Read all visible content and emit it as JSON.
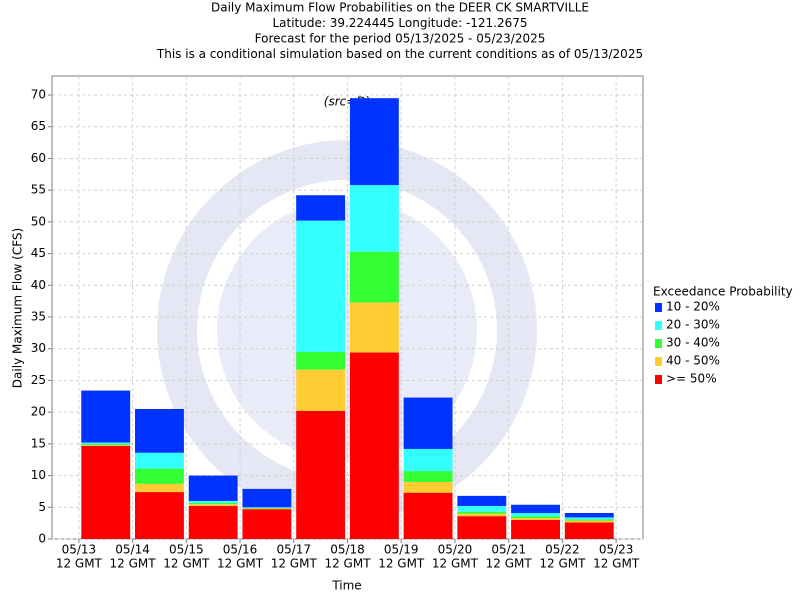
{
  "chart_data": {
    "type": "stacked_bar",
    "title": [
      "Daily Maximum Flow Probabilities on the DEER CK SMARTVILLE",
      "Latitude: 39.224445 Longitude: -121.2675",
      "Forecast for the period 05/13/2025 - 05/23/2025",
      "This is a conditional simulation based on the current conditions as of 05/13/2025"
    ],
    "subtitle": "(src=D)",
    "x_label": "Time",
    "y_label": "Daily Maximum Flow (CFS)",
    "legend_title": "Exceedance Probability",
    "xticks": [
      [
        "05/13",
        "12 GMT"
      ],
      [
        "05/14",
        "12 GMT"
      ],
      [
        "05/15",
        "12 GMT"
      ],
      [
        "05/16",
        "12 GMT"
      ],
      [
        "05/17",
        "12 GMT"
      ],
      [
        "05/18",
        "12 GMT"
      ],
      [
        "05/19",
        "12 GMT"
      ],
      [
        "05/20",
        "12 GMT"
      ],
      [
        "05/21",
        "12 GMT"
      ],
      [
        "05/22",
        "12 GMT"
      ],
      [
        "05/23",
        "12 GMT"
      ]
    ],
    "ylim": [
      0,
      73
    ],
    "yticks": [
      0,
      5,
      10,
      15,
      20,
      25,
      30,
      35,
      40,
      45,
      50,
      55,
      60,
      65,
      70
    ],
    "grid": true,
    "series": [
      {
        "name": "10 - 20%",
        "color": "#0033ff",
        "values": [
          8.2,
          6.9,
          4.0,
          2.9,
          4.0,
          13.7,
          8.1,
          1.6,
          1.3,
          0.7
        ]
      },
      {
        "name": "20 - 30%",
        "color": "#33ffff",
        "values": [
          0.2,
          2.5,
          0.3,
          0.1,
          20.7,
          10.5,
          3.5,
          0.9,
          0.5,
          0.3
        ]
      },
      {
        "name": "30 - 40%",
        "color": "#33ff33",
        "values": [
          0.2,
          2.4,
          0.2,
          0.1,
          2.8,
          8.0,
          1.7,
          0.3,
          0.3,
          0.2
        ]
      },
      {
        "name": "40 - 50%",
        "color": "#ffcc33",
        "values": [
          0.1,
          1.3,
          0.3,
          0.1,
          6.5,
          7.9,
          1.7,
          0.4,
          0.3,
          0.3
        ]
      },
      {
        "name": ">= 50%",
        "color": "#ff0000",
        "values": [
          14.7,
          7.4,
          5.2,
          4.7,
          20.2,
          29.4,
          7.3,
          3.6,
          3.0,
          2.6
        ]
      }
    ]
  }
}
